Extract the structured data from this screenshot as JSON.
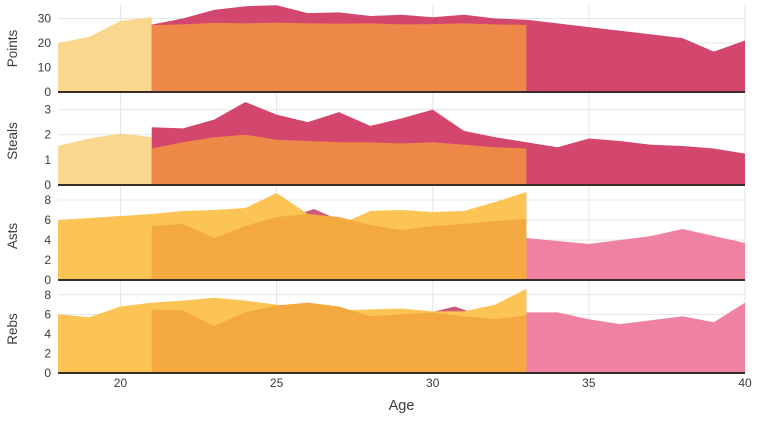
{
  "chart_data": {
    "type": "area",
    "title": "",
    "xlabel": "Age",
    "x_range": [
      18,
      40
    ],
    "x_ticks": [
      20,
      25,
      30,
      35,
      40
    ],
    "grid_color": "#e5e5e5",
    "baseline_color": "#3a2d28",
    "tick_color": "#3b3b3b",
    "subplots": [
      {
        "ylabel": "Points",
        "ylim": [
          0,
          35.5
        ],
        "yticks": [
          0,
          10,
          20,
          30
        ],
        "series": [
          {
            "name": "player-yellow",
            "color": "#FAD78F",
            "ages": [
              18,
              19,
              20,
              21
            ],
            "values": [
              20,
              22.5,
              29,
              30.5
            ]
          },
          {
            "name": "player-crimson",
            "color": "#D3466D",
            "ages": [
              21,
              22,
              23,
              24,
              25,
              26,
              27,
              28,
              29,
              30,
              31,
              32,
              33,
              34,
              35,
              36,
              37,
              38,
              39,
              40
            ],
            "values": [
              27.5,
              30,
              33.5,
              35,
              35.4,
              32.2,
              32.5,
              31,
              31.5,
              30.5,
              31.5,
              30,
              29.5,
              28,
              26.5,
              25,
              23.5,
              22,
              16.5,
              21
            ]
          },
          {
            "name": "player-orange",
            "color": "#ED8848",
            "ages": [
              21,
              22,
              23,
              24,
              25,
              26,
              27,
              28,
              29,
              30,
              31,
              32,
              33
            ],
            "values": [
              27.3,
              27.6,
              28.2,
              28,
              28.3,
              28,
              27.9,
              28,
              27.6,
              27.7,
              28,
              27.6,
              27.4
            ]
          }
        ]
      },
      {
        "ylabel": "Steals",
        "ylim": [
          0,
          3.5
        ],
        "yticks": [
          0,
          1,
          2,
          3
        ],
        "series": [
          {
            "name": "player-yellow",
            "color": "#FAD78F",
            "ages": [
              18,
              19,
              20,
              21
            ],
            "values": [
              1.55,
              1.85,
              2.05,
              1.9
            ]
          },
          {
            "name": "player-crimson",
            "color": "#D3466D",
            "ages": [
              21,
              22,
              23,
              24,
              25,
              26,
              27,
              28,
              29,
              30,
              31,
              32,
              33,
              34,
              35,
              36,
              37,
              38,
              39,
              40
            ],
            "values": [
              2.3,
              2.25,
              2.6,
              3.3,
              2.8,
              2.5,
              2.9,
              2.35,
              2.65,
              3.0,
              2.15,
              1.9,
              1.7,
              1.5,
              1.85,
              1.75,
              1.6,
              1.55,
              1.45,
              1.25
            ]
          },
          {
            "name": "player-orange",
            "color": "#ED8848",
            "ages": [
              21,
              22,
              23,
              24,
              25,
              26,
              27,
              28,
              29,
              30,
              31,
              32,
              33
            ],
            "values": [
              1.45,
              1.7,
              1.9,
              2.0,
              1.8,
              1.75,
              1.7,
              1.7,
              1.65,
              1.7,
              1.6,
              1.5,
              1.45
            ]
          }
        ]
      },
      {
        "ylabel": "Asts",
        "ylim": [
          0,
          8.8
        ],
        "yticks": [
          0,
          2,
          4,
          6,
          8
        ],
        "series": [
          {
            "name": "player-pink",
            "color": "#EF82A0",
            "ages": [
              33,
              34,
              35,
              36,
              37,
              38,
              39,
              40
            ],
            "values": [
              4.2,
              3.9,
              3.6,
              4.0,
              4.4,
              5.1,
              4.4,
              3.7
            ]
          },
          {
            "name": "player-crimson",
            "color": "#CE587A",
            "ages": [
              25.3,
              26.2,
              27.0
            ],
            "values": [
              6.2,
              7.1,
              6.0
            ]
          },
          {
            "name": "player-yellow",
            "color": "#FBC455",
            "ages": [
              18,
              19,
              20,
              21,
              22,
              23,
              24,
              25,
              26,
              27,
              28,
              29,
              30,
              31,
              32,
              33
            ],
            "values": [
              6.0,
              6.2,
              6.4,
              6.6,
              6.9,
              7.0,
              7.2,
              8.7,
              6.6,
              5.5,
              6.9,
              7.0,
              6.8,
              6.9,
              7.8,
              8.8
            ]
          },
          {
            "name": "player-amber",
            "color": "#F3A840",
            "ages": [
              21,
              22,
              23,
              24,
              25,
              26,
              27,
              28,
              29,
              30,
              31,
              32,
              33
            ],
            "values": [
              5.4,
              5.6,
              4.2,
              5.4,
              6.3,
              6.6,
              6.3,
              5.5,
              5.0,
              5.4,
              5.6,
              5.9,
              6.1
            ]
          }
        ]
      },
      {
        "ylabel": "Rebs",
        "ylim": [
          0,
          9
        ],
        "yticks": [
          0,
          2,
          4,
          6,
          8
        ],
        "series": [
          {
            "name": "player-pink",
            "color": "#EF82A0",
            "ages": [
              33,
              34,
              35,
              36,
              37,
              38,
              39,
              40
            ],
            "values": [
              6.2,
              6.2,
              5.5,
              5.0,
              5.4,
              5.8,
              5.2,
              7.2
            ]
          },
          {
            "name": "player-crimson",
            "color": "#CE587A",
            "ages": [
              29.7,
              30.7,
              31.8
            ],
            "values": [
              6.0,
              6.8,
              5.6
            ]
          },
          {
            "name": "player-yellow",
            "color": "#FBC455",
            "ages": [
              18,
              19,
              20,
              21,
              22,
              23,
              24,
              25,
              26,
              27,
              28,
              29,
              30,
              31,
              32,
              33
            ],
            "values": [
              6.0,
              5.7,
              6.8,
              7.2,
              7.4,
              7.7,
              7.4,
              7.0,
              6.6,
              6.4,
              6.5,
              6.6,
              6.3,
              6.3,
              7.0,
              8.6
            ]
          },
          {
            "name": "player-amber",
            "color": "#F3A840",
            "ages": [
              21,
              22,
              23,
              24,
              25,
              26,
              27,
              28,
              29,
              30,
              31,
              32,
              33
            ],
            "values": [
              6.5,
              6.4,
              4.8,
              6.2,
              6.9,
              7.2,
              6.8,
              5.8,
              6.0,
              6.2,
              5.8,
              5.5,
              5.9
            ]
          }
        ]
      }
    ]
  }
}
